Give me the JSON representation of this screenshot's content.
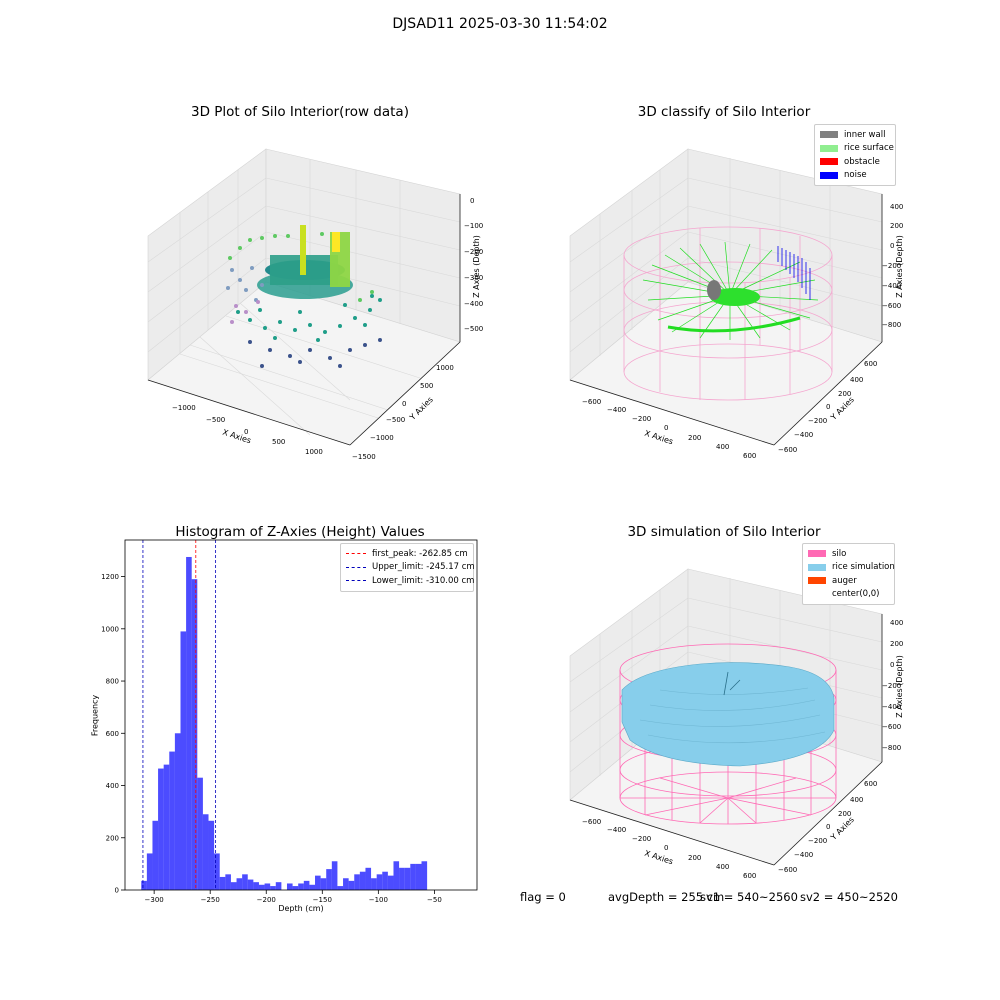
{
  "suptitle": "DJSAD11 2025-03-30 11:54:02",
  "plots": {
    "raw": {
      "title": "3D Plot of Silo Interior(row data)",
      "xlabel": "X Axies",
      "ylabel": "Y Axies",
      "zlabel": "Z Axies (Depth)",
      "xticks": [
        "−1000",
        "−500",
        "0",
        "500",
        "1000"
      ],
      "yticks": [
        "−1500",
        "−1000",
        "−500",
        "0",
        "500",
        "1000"
      ],
      "zticks": [
        "0",
        "−100",
        "−200",
        "−300",
        "−400",
        "−500"
      ]
    },
    "classify": {
      "title": "3D classify of Silo Interior",
      "xlabel": "X Axies",
      "ylabel": "Y Axies",
      "zlabel": "Z Axies (Depth)",
      "xticks": [
        "−600",
        "−400",
        "−200",
        "0",
        "200",
        "400",
        "600"
      ],
      "yticks": [
        "−600",
        "−400",
        "−200",
        "0",
        "200",
        "400",
        "600"
      ],
      "zticks": [
        "400",
        "200",
        "0",
        "−200",
        "−400",
        "−600",
        "−800"
      ],
      "legend": [
        {
          "label": "inner wall",
          "color": "#808080"
        },
        {
          "label": "rice surface",
          "color": "#90ee90"
        },
        {
          "label": "obstacle",
          "color": "#ff0000"
        },
        {
          "label": "noise",
          "color": "#0000ff"
        }
      ]
    },
    "simulation": {
      "title": "3D simulation of Silo Interior",
      "xlabel": "X Axies",
      "ylabel": "Y Axies",
      "zlabel": "Z Axies (Depth)",
      "xticks": [
        "−600",
        "−400",
        "−200",
        "0",
        "200",
        "400",
        "600"
      ],
      "yticks": [
        "−600",
        "−400",
        "−200",
        "0",
        "200",
        "400",
        "600"
      ],
      "zticks": [
        "400",
        "200",
        "0",
        "−200",
        "−400",
        "−600",
        "−800"
      ],
      "legend": [
        {
          "label": "silo",
          "color": "#ff69b4"
        },
        {
          "label": "rice simulation",
          "color": "#87ceeb"
        },
        {
          "label": "auger",
          "color": "#ff4500"
        },
        {
          "label": "center(0,0)",
          "color": "#ffffff"
        }
      ],
      "info": {
        "flag": "flag = 0",
        "avgdepth": "avgDepth = 255 cm",
        "sv1": "sv1 = 540~2560",
        "sv2": "sv2 = 450~2520"
      }
    }
  },
  "chart_data": [
    {
      "type": "histogram",
      "title": "Histogram of Z-Axies (Height) Values",
      "xlabel": "Depth (cm)",
      "ylabel": "Frequency",
      "xlim": [
        -326,
        -12
      ],
      "ylim": [
        0,
        1340
      ],
      "xticks": [
        -300,
        -250,
        -200,
        -150,
        -100,
        -50
      ],
      "xtick_labels": [
        "−300",
        "−250",
        "−200",
        "−150",
        "−100",
        "−50"
      ],
      "yticks": [
        0,
        200,
        400,
        600,
        800,
        1000,
        1200
      ],
      "bin_start": -311.5,
      "bin_width": 5,
      "counts": [
        35,
        140,
        265,
        465,
        480,
        530,
        600,
        990,
        1275,
        1190,
        430,
        290,
        265,
        140,
        50,
        60,
        30,
        45,
        60,
        40,
        30,
        20,
        25,
        15,
        30,
        0,
        25,
        15,
        25,
        35,
        20,
        55,
        45,
        80,
        110,
        15,
        45,
        35,
        60,
        70,
        85,
        45,
        60,
        70,
        55,
        110,
        85,
        85,
        100,
        100,
        110
      ],
      "bar_color": "#0000ff",
      "grid": false,
      "lines": [
        {
          "label": "first_peak: -262.85 cm",
          "x": -262.85,
          "color": "#ff0000"
        },
        {
          "label": "Upper_limit: -245.17 cm",
          "x": -245.17,
          "color": "#0000bb"
        },
        {
          "label": "Lower_limit: -310.00 cm",
          "x": -310.0,
          "color": "#0000bb"
        }
      ],
      "legend_position": "top-right"
    }
  ]
}
